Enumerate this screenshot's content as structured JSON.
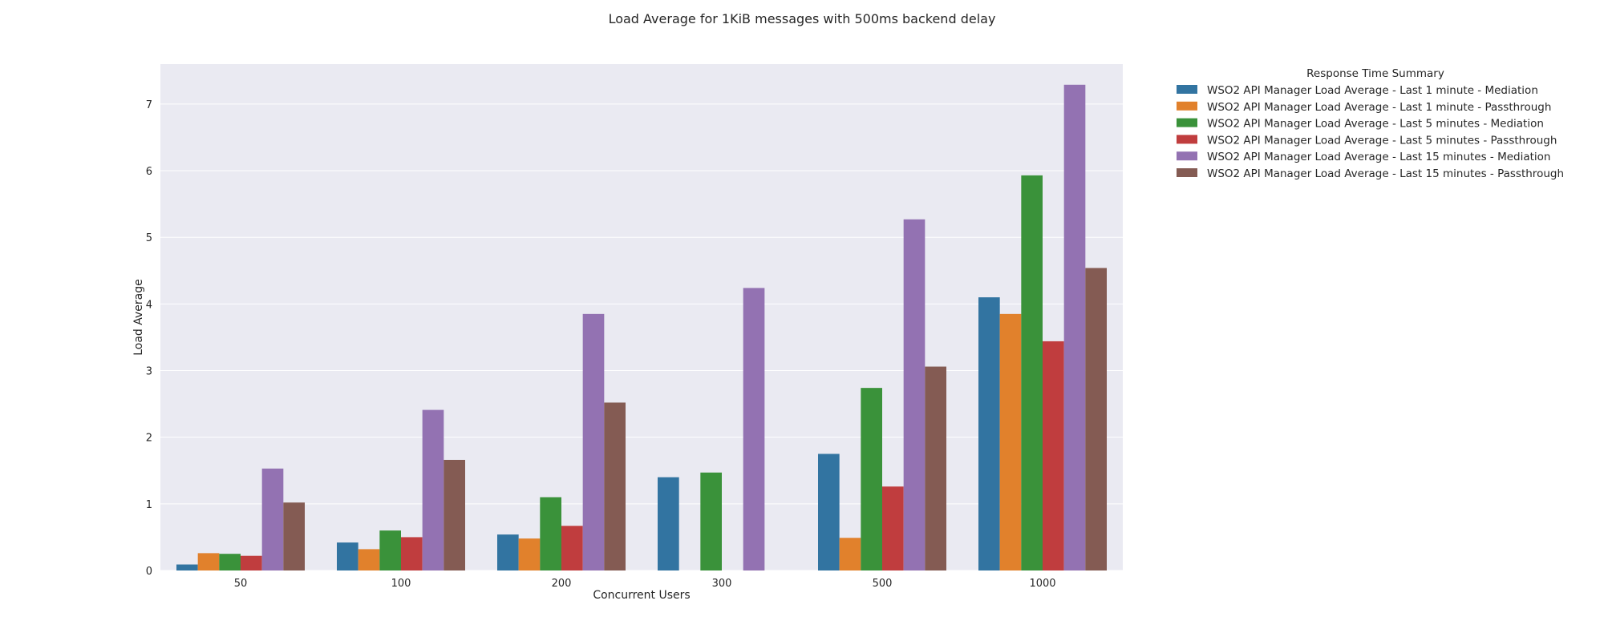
{
  "chart_data": {
    "type": "bar",
    "title": "Load Average for 1KiB messages with 500ms backend delay",
    "xlabel": "Concurrent Users",
    "ylabel": "Load Average",
    "ylim": [
      0,
      7.6
    ],
    "yticks": [
      0,
      1,
      2,
      3,
      4,
      5,
      6,
      7
    ],
    "grid": true,
    "legend_title": "Response Time Summary",
    "legend_position": "outside-right",
    "categories": [
      "50",
      "100",
      "200",
      "300",
      "500",
      "1000"
    ],
    "series": [
      {
        "name": "WSO2 API Manager Load Average - Last 1 minute - Mediation",
        "color": "#3274a1",
        "values": [
          0.09,
          0.42,
          0.54,
          1.4,
          1.75,
          4.1
        ]
      },
      {
        "name": "WSO2 API Manager Load Average - Last 1 minute - Passthrough",
        "color": "#e1812c",
        "values": [
          0.26,
          0.32,
          0.48,
          null,
          0.49,
          3.85
        ]
      },
      {
        "name": "WSO2 API Manager Load Average - Last 5 minutes - Mediation",
        "color": "#3a923a",
        "values": [
          0.25,
          0.6,
          1.1,
          1.47,
          2.74,
          5.93
        ]
      },
      {
        "name": "WSO2 API Manager Load Average - Last 5 minutes - Passthrough",
        "color": "#c03d3e",
        "values": [
          0.22,
          0.5,
          0.67,
          null,
          1.26,
          3.44
        ]
      },
      {
        "name": "WSO2 API Manager Load Average - Last 15 minutes - Mediation",
        "color": "#9372b2",
        "values": [
          1.53,
          2.41,
          3.85,
          4.24,
          5.27,
          7.29
        ]
      },
      {
        "name": "WSO2 API Manager Load Average - Last 15 minutes - Passthrough",
        "color": "#845b53",
        "values": [
          1.02,
          1.66,
          2.52,
          null,
          3.06,
          4.54
        ]
      }
    ]
  }
}
